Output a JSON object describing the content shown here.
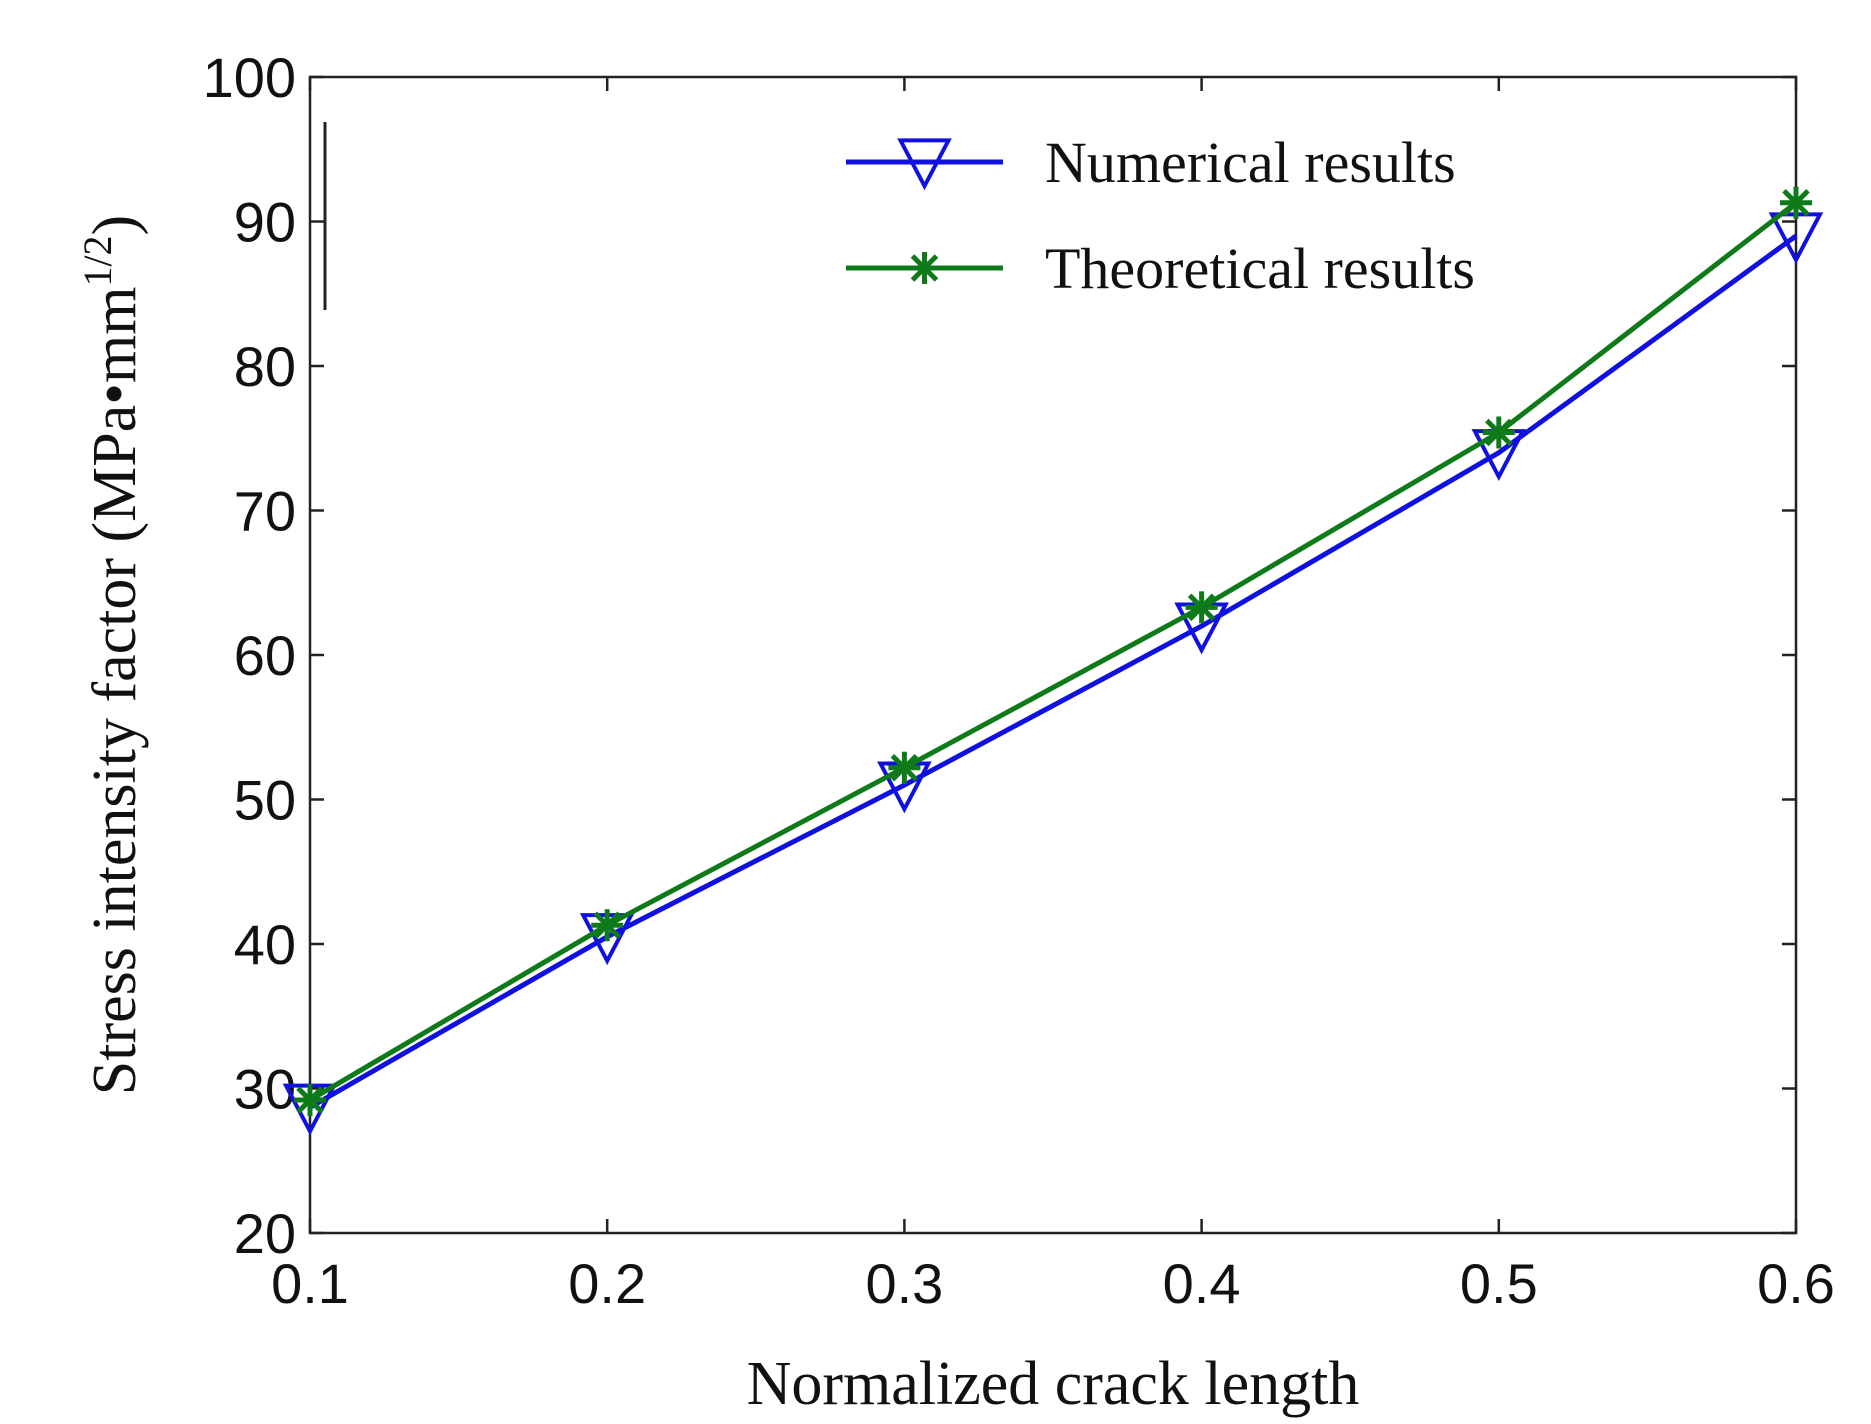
{
  "chart_data": {
    "type": "line",
    "title": "",
    "xlabel": "Normalized crack length",
    "ylabel": "Stress intensity factor (MPa•mm",
    "ylabel_superscript": "1/2",
    "ylabel_close": ")",
    "x": [
      0.1,
      0.2,
      0.3,
      0.4,
      0.5,
      0.6
    ],
    "xlim": [
      0.1,
      0.6
    ],
    "ylim": [
      20,
      100
    ],
    "xticks": [
      "0.1",
      "0.2",
      "0.3",
      "0.4",
      "0.5",
      "0.6"
    ],
    "yticks": [
      "20",
      "30",
      "40",
      "50",
      "60",
      "70",
      "80",
      "90",
      "100"
    ],
    "grid": false,
    "legend_position": "top-right",
    "series": [
      {
        "name": "Numerical results",
        "color": "#1010e0",
        "marker": "triangle-down",
        "values": [
          28.7,
          40.5,
          51.0,
          62.0,
          74.0,
          89.0
        ]
      },
      {
        "name": "Theoretical results",
        "color": "#0f7a1a",
        "marker": "asterisk",
        "values": [
          29.2,
          41.3,
          52.2,
          63.3,
          75.4,
          91.3
        ]
      }
    ]
  }
}
